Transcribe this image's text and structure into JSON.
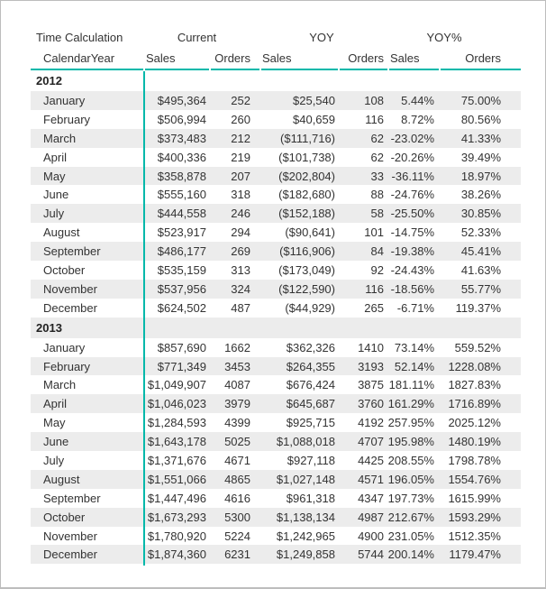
{
  "colors": {
    "accent": "#01B8AA",
    "alt_row": "#ECECEC",
    "text": "#333333",
    "page_border": "#BDBDBD"
  },
  "header": {
    "row_header_group": "Time Calculation",
    "row_header_sub": "CalendarYear",
    "groups": [
      {
        "label": "Current",
        "sales": "Sales",
        "orders": "Orders"
      },
      {
        "label": "YOY",
        "sales": "Sales",
        "orders": "Orders"
      },
      {
        "label": "YOY%",
        "sales": "Sales",
        "orders": "Orders"
      }
    ]
  },
  "years": [
    {
      "label": "2012",
      "months": [
        {
          "label": "January",
          "values": [
            "$495,364",
            "252",
            "$25,540",
            "108",
            "5.44%",
            "75.00%"
          ]
        },
        {
          "label": "February",
          "values": [
            "$506,994",
            "260",
            "$40,659",
            "116",
            "8.72%",
            "80.56%"
          ]
        },
        {
          "label": "March",
          "values": [
            "$373,483",
            "212",
            "($111,716)",
            "62",
            "-23.02%",
            "41.33%"
          ]
        },
        {
          "label": "April",
          "values": [
            "$400,336",
            "219",
            "($101,738)",
            "62",
            "-20.26%",
            "39.49%"
          ]
        },
        {
          "label": "May",
          "values": [
            "$358,878",
            "207",
            "($202,804)",
            "33",
            "-36.11%",
            "18.97%"
          ]
        },
        {
          "label": "June",
          "values": [
            "$555,160",
            "318",
            "($182,680)",
            "88",
            "-24.76%",
            "38.26%"
          ]
        },
        {
          "label": "July",
          "values": [
            "$444,558",
            "246",
            "($152,188)",
            "58",
            "-25.50%",
            "30.85%"
          ]
        },
        {
          "label": "August",
          "values": [
            "$523,917",
            "294",
            "($90,641)",
            "101",
            "-14.75%",
            "52.33%"
          ]
        },
        {
          "label": "September",
          "values": [
            "$486,177",
            "269",
            "($116,906)",
            "84",
            "-19.38%",
            "45.41%"
          ]
        },
        {
          "label": "October",
          "values": [
            "$535,159",
            "313",
            "($173,049)",
            "92",
            "-24.43%",
            "41.63%"
          ]
        },
        {
          "label": "November",
          "values": [
            "$537,956",
            "324",
            "($122,590)",
            "116",
            "-18.56%",
            "55.77%"
          ]
        },
        {
          "label": "December",
          "values": [
            "$624,502",
            "487",
            "($44,929)",
            "265",
            "-6.71%",
            "119.37%"
          ]
        }
      ]
    },
    {
      "label": "2013",
      "months": [
        {
          "label": "January",
          "values": [
            "$857,690",
            "1662",
            "$362,326",
            "1410",
            "73.14%",
            "559.52%"
          ]
        },
        {
          "label": "February",
          "values": [
            "$771,349",
            "3453",
            "$264,355",
            "3193",
            "52.14%",
            "1228.08%"
          ]
        },
        {
          "label": "March",
          "values": [
            "$1,049,907",
            "4087",
            "$676,424",
            "3875",
            "181.11%",
            "1827.83%"
          ]
        },
        {
          "label": "April",
          "values": [
            "$1,046,023",
            "3979",
            "$645,687",
            "3760",
            "161.29%",
            "1716.89%"
          ]
        },
        {
          "label": "May",
          "values": [
            "$1,284,593",
            "4399",
            "$925,715",
            "4192",
            "257.95%",
            "2025.12%"
          ]
        },
        {
          "label": "June",
          "values": [
            "$1,643,178",
            "5025",
            "$1,088,018",
            "4707",
            "195.98%",
            "1480.19%"
          ]
        },
        {
          "label": "July",
          "values": [
            "$1,371,676",
            "4671",
            "$927,118",
            "4425",
            "208.55%",
            "1798.78%"
          ]
        },
        {
          "label": "August",
          "values": [
            "$1,551,066",
            "4865",
            "$1,027,148",
            "4571",
            "196.05%",
            "1554.76%"
          ]
        },
        {
          "label": "September",
          "values": [
            "$1,447,496",
            "4616",
            "$961,318",
            "4347",
            "197.73%",
            "1615.99%"
          ]
        },
        {
          "label": "October",
          "values": [
            "$1,673,293",
            "5300",
            "$1,138,134",
            "4987",
            "212.67%",
            "1593.29%"
          ]
        },
        {
          "label": "November",
          "values": [
            "$1,780,920",
            "5224",
            "$1,242,965",
            "4900",
            "231.05%",
            "1512.35%"
          ]
        },
        {
          "label": "December",
          "values": [
            "$1,874,360",
            "6231",
            "$1,249,858",
            "5744",
            "200.14%",
            "1179.47%"
          ]
        }
      ]
    }
  ]
}
